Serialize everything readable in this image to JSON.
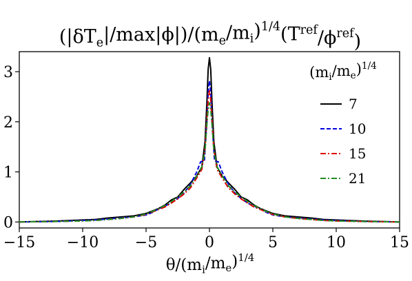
{
  "chart_data": {
    "type": "line",
    "title": "(|δT_e|/max|ϕ|)/(m_e/m_i)^(1/4)(T^ref/ϕ^ref)",
    "xlabel": "θ/(m_i/m_e)^(1/4)",
    "ylabel": "",
    "xlim": [
      -15,
      15
    ],
    "ylim": [
      -0.12,
      3.4
    ],
    "xticks": [
      -15,
      -10,
      -5,
      0,
      5,
      10,
      15
    ],
    "yticks": [
      0,
      1,
      2,
      3
    ],
    "xtick_labels": [
      "−15",
      "−10",
      "−5",
      "0",
      "5",
      "10",
      "15"
    ],
    "ytick_labels": [
      "0",
      "1",
      "2",
      "3"
    ],
    "grid": false,
    "legend": {
      "title": "(m_i/m_e)^(1/4)",
      "placement": "top-right"
    },
    "series": [
      {
        "name": "7",
        "color": "#000000",
        "style": "solid",
        "x": [
          -15,
          -12,
          -10,
          -9,
          -8,
          -7,
          -6,
          -5,
          -4.5,
          -4,
          -3.5,
          -3,
          -2.5,
          -2,
          -1.5,
          -1,
          -0.6,
          -0.35,
          -0.2,
          -0.1,
          0,
          0.1,
          0.2,
          0.35,
          0.6,
          1,
          1.5,
          2,
          2.5,
          3,
          3.5,
          4,
          4.5,
          5,
          6,
          7,
          8,
          9,
          10,
          12,
          15
        ],
        "y": [
          0.0,
          0.02,
          0.04,
          0.05,
          0.08,
          0.1,
          0.12,
          0.17,
          0.22,
          0.27,
          0.34,
          0.44,
          0.5,
          0.65,
          0.78,
          0.92,
          1.1,
          1.6,
          2.4,
          3.05,
          3.28,
          3.05,
          2.4,
          1.6,
          1.1,
          0.92,
          0.78,
          0.65,
          0.5,
          0.44,
          0.34,
          0.27,
          0.22,
          0.17,
          0.12,
          0.1,
          0.08,
          0.05,
          0.04,
          0.02,
          0.0
        ]
      },
      {
        "name": "10",
        "color": "#0000dd",
        "style": "dashed",
        "x": [
          -15,
          -12,
          -10,
          -9,
          -8,
          -7,
          -6,
          -5,
          -4.5,
          -4,
          -3.5,
          -3,
          -2.5,
          -2,
          -1.5,
          -1,
          -0.7,
          -0.4,
          -0.2,
          -0.1,
          0,
          0.1,
          0.2,
          0.4,
          0.7,
          1,
          1.5,
          2,
          2.5,
          3,
          3.5,
          4,
          4.5,
          5,
          6,
          7,
          8,
          9,
          10,
          12,
          15
        ],
        "y": [
          0.0,
          0.01,
          0.03,
          0.04,
          0.06,
          0.08,
          0.1,
          0.14,
          0.19,
          0.26,
          0.32,
          0.38,
          0.47,
          0.58,
          0.75,
          1.0,
          1.2,
          1.22,
          2.0,
          2.6,
          2.82,
          2.6,
          2.0,
          1.22,
          1.2,
          1.0,
          0.75,
          0.58,
          0.47,
          0.38,
          0.32,
          0.26,
          0.19,
          0.14,
          0.1,
          0.08,
          0.06,
          0.04,
          0.03,
          0.01,
          0.0
        ]
      },
      {
        "name": "15",
        "color": "#dd0000",
        "style": "dashdot",
        "x": [
          -15,
          -12,
          -10,
          -9,
          -8,
          -7,
          -6,
          -5,
          -4.5,
          -4,
          -3.5,
          -3,
          -2.5,
          -2,
          -1.5,
          -1,
          -0.6,
          -0.35,
          -0.2,
          -0.1,
          0,
          0.1,
          0.2,
          0.35,
          0.6,
          1,
          1.5,
          2,
          2.5,
          3,
          3.5,
          4,
          4.5,
          5,
          6,
          7,
          8,
          9,
          10,
          12,
          15
        ],
        "y": [
          0.0,
          0.01,
          0.02,
          0.03,
          0.05,
          0.07,
          0.1,
          0.15,
          0.2,
          0.25,
          0.3,
          0.38,
          0.46,
          0.56,
          0.68,
          0.88,
          1.05,
          1.45,
          2.05,
          2.45,
          2.62,
          2.45,
          2.05,
          1.45,
          1.05,
          0.88,
          0.68,
          0.56,
          0.46,
          0.38,
          0.3,
          0.25,
          0.2,
          0.15,
          0.1,
          0.07,
          0.05,
          0.03,
          0.02,
          0.01,
          0.0
        ]
      },
      {
        "name": "21",
        "color": "#228b22",
        "style": "dashdot",
        "x": [
          -15,
          -12,
          -10,
          -9,
          -8,
          -7,
          -6,
          -5,
          -4.5,
          -4,
          -3.5,
          -3,
          -2.5,
          -2,
          -1.5,
          -1,
          -0.6,
          -0.35,
          -0.2,
          -0.1,
          0,
          0.1,
          0.2,
          0.35,
          0.6,
          1,
          1.5,
          2,
          2.5,
          3,
          3.5,
          4,
          4.5,
          5,
          6,
          7,
          8,
          9,
          10,
          12,
          15
        ],
        "y": [
          0.0,
          0.01,
          0.02,
          0.03,
          0.05,
          0.07,
          0.1,
          0.16,
          0.21,
          0.27,
          0.33,
          0.41,
          0.5,
          0.6,
          0.72,
          0.92,
          1.1,
          1.42,
          1.95,
          2.25,
          2.38,
          2.25,
          1.95,
          1.42,
          1.1,
          0.92,
          0.72,
          0.6,
          0.5,
          0.41,
          0.33,
          0.27,
          0.21,
          0.16,
          0.1,
          0.07,
          0.05,
          0.03,
          0.02,
          0.01,
          0.0
        ]
      }
    ]
  }
}
